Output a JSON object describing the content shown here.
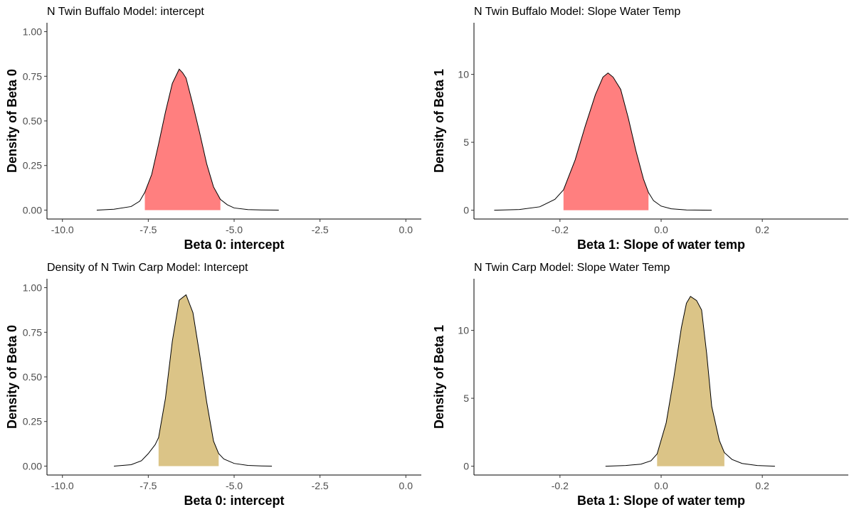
{
  "colors": {
    "buffalo_fill": "#ff7f7f",
    "carp_fill": "#dbc487",
    "line": "#000000",
    "axis": "#000000",
    "tick_label": "#4d4d4d"
  },
  "chart_data": [
    {
      "type": "area",
      "title": "N Twin Buffalo Model: intercept",
      "xlabel": "Beta 0: intercept",
      "ylabel": "Density of Beta 0",
      "xlim": [
        -10.45,
        0.45
      ],
      "ylim": [
        -0.05,
        1.05
      ],
      "xticks": [
        -10.0,
        -7.5,
        -5.0,
        -2.5,
        0.0
      ],
      "xtick_labels": [
        "-10.0",
        "-7.5",
        "-5.0",
        "-2.5",
        "0.0"
      ],
      "yticks": [
        0,
        0.25,
        0.5,
        0.75,
        1.0
      ],
      "ytick_labels": [
        "0.00",
        "0.25",
        "0.50",
        "0.75",
        "1.00"
      ],
      "fill": "#ff7f7f",
      "shade_range": [
        -7.6,
        -5.4
      ],
      "curve": {
        "x": [
          -9.0,
          -8.5,
          -8.0,
          -7.75,
          -7.6,
          -7.4,
          -7.2,
          -7.0,
          -6.8,
          -6.6,
          -6.5,
          -6.4,
          -6.2,
          -6.0,
          -5.8,
          -5.6,
          -5.4,
          -5.2,
          -5.0,
          -4.6,
          -4.2,
          -3.7
        ],
        "y": [
          0.0,
          0.005,
          0.02,
          0.05,
          0.1,
          0.2,
          0.37,
          0.55,
          0.71,
          0.79,
          0.77,
          0.74,
          0.59,
          0.43,
          0.26,
          0.13,
          0.06,
          0.03,
          0.012,
          0.003,
          0.001,
          0.0
        ]
      }
    },
    {
      "type": "area",
      "title": "N Twin Buffalo Model: Slope Water Temp",
      "xlabel": "Beta 1: Slope of water temp",
      "ylabel": "Density of Beta 1",
      "xlim": [
        -0.37,
        0.37
      ],
      "ylim": [
        -0.65,
        13.8
      ],
      "xticks": [
        -0.2,
        0.0,
        0.2
      ],
      "xtick_labels": [
        "-0.2",
        "0.0",
        "0.2"
      ],
      "yticks": [
        0,
        5,
        10
      ],
      "ytick_labels": [
        "0",
        "5",
        "10"
      ],
      "fill": "#ff7f7f",
      "shade_range": [
        -0.193,
        -0.025
      ],
      "curve": {
        "x": [
          -0.33,
          -0.28,
          -0.24,
          -0.21,
          -0.193,
          -0.17,
          -0.15,
          -0.13,
          -0.115,
          -0.105,
          -0.095,
          -0.08,
          -0.065,
          -0.05,
          -0.035,
          -0.025,
          -0.015,
          0.0,
          0.02,
          0.05,
          0.1
        ],
        "y": [
          0.0,
          0.05,
          0.25,
          0.8,
          1.5,
          3.7,
          6.2,
          8.5,
          9.8,
          10.1,
          9.8,
          8.9,
          6.8,
          4.4,
          2.3,
          1.3,
          0.7,
          0.3,
          0.1,
          0.02,
          0.0
        ]
      }
    },
    {
      "type": "area",
      "title": "Density of N Twin Carp Model: Intercept",
      "xlabel": "Beta 0: intercept",
      "ylabel": "Density of Beta 0",
      "xlim": [
        -10.45,
        0.45
      ],
      "ylim": [
        -0.05,
        1.05
      ],
      "xticks": [
        -10.0,
        -7.5,
        -5.0,
        -2.5,
        0.0
      ],
      "xtick_labels": [
        "-10.0",
        "-7.5",
        "-5.0",
        "-2.5",
        "0.0"
      ],
      "yticks": [
        0,
        0.25,
        0.5,
        0.75,
        1.0
      ],
      "ytick_labels": [
        "0.00",
        "0.25",
        "0.50",
        "0.75",
        "1.00"
      ],
      "fill": "#dbc487",
      "shade_range": [
        -7.2,
        -5.45
      ],
      "curve": {
        "x": [
          -8.5,
          -8.0,
          -7.7,
          -7.5,
          -7.3,
          -7.2,
          -7.0,
          -6.8,
          -6.6,
          -6.4,
          -6.3,
          -6.2,
          -6.0,
          -5.8,
          -5.6,
          -5.45,
          -5.3,
          -5.0,
          -4.6,
          -4.2,
          -3.9
        ],
        "y": [
          0.0,
          0.008,
          0.03,
          0.07,
          0.12,
          0.16,
          0.38,
          0.7,
          0.93,
          0.96,
          0.91,
          0.86,
          0.62,
          0.36,
          0.14,
          0.07,
          0.04,
          0.015,
          0.004,
          0.001,
          0.0
        ]
      }
    },
    {
      "type": "area",
      "title": "N Twin Carp Model: Slope Water Temp",
      "xlabel": "Beta 1: Slope of water temp",
      "ylabel": "Density of Beta 1",
      "xlim": [
        -0.37,
        0.37
      ],
      "ylim": [
        -0.65,
        13.8
      ],
      "xticks": [
        -0.2,
        0.0,
        0.2
      ],
      "xtick_labels": [
        "-0.2",
        "0.0",
        "0.2"
      ],
      "yticks": [
        0,
        5,
        10
      ],
      "ytick_labels": [
        "0",
        "5",
        "10"
      ],
      "fill": "#dbc487",
      "shade_range": [
        -0.008,
        0.125
      ],
      "curve": {
        "x": [
          -0.11,
          -0.07,
          -0.04,
          -0.02,
          -0.008,
          0.01,
          0.025,
          0.04,
          0.05,
          0.058,
          0.07,
          0.08,
          0.09,
          0.1,
          0.115,
          0.125,
          0.14,
          0.16,
          0.19,
          0.225
        ],
        "y": [
          0.0,
          0.05,
          0.15,
          0.4,
          0.9,
          3.2,
          6.5,
          10.2,
          12.0,
          12.5,
          12.2,
          11.5,
          8.3,
          4.4,
          1.9,
          1.0,
          0.5,
          0.2,
          0.05,
          0.0
        ]
      }
    }
  ]
}
